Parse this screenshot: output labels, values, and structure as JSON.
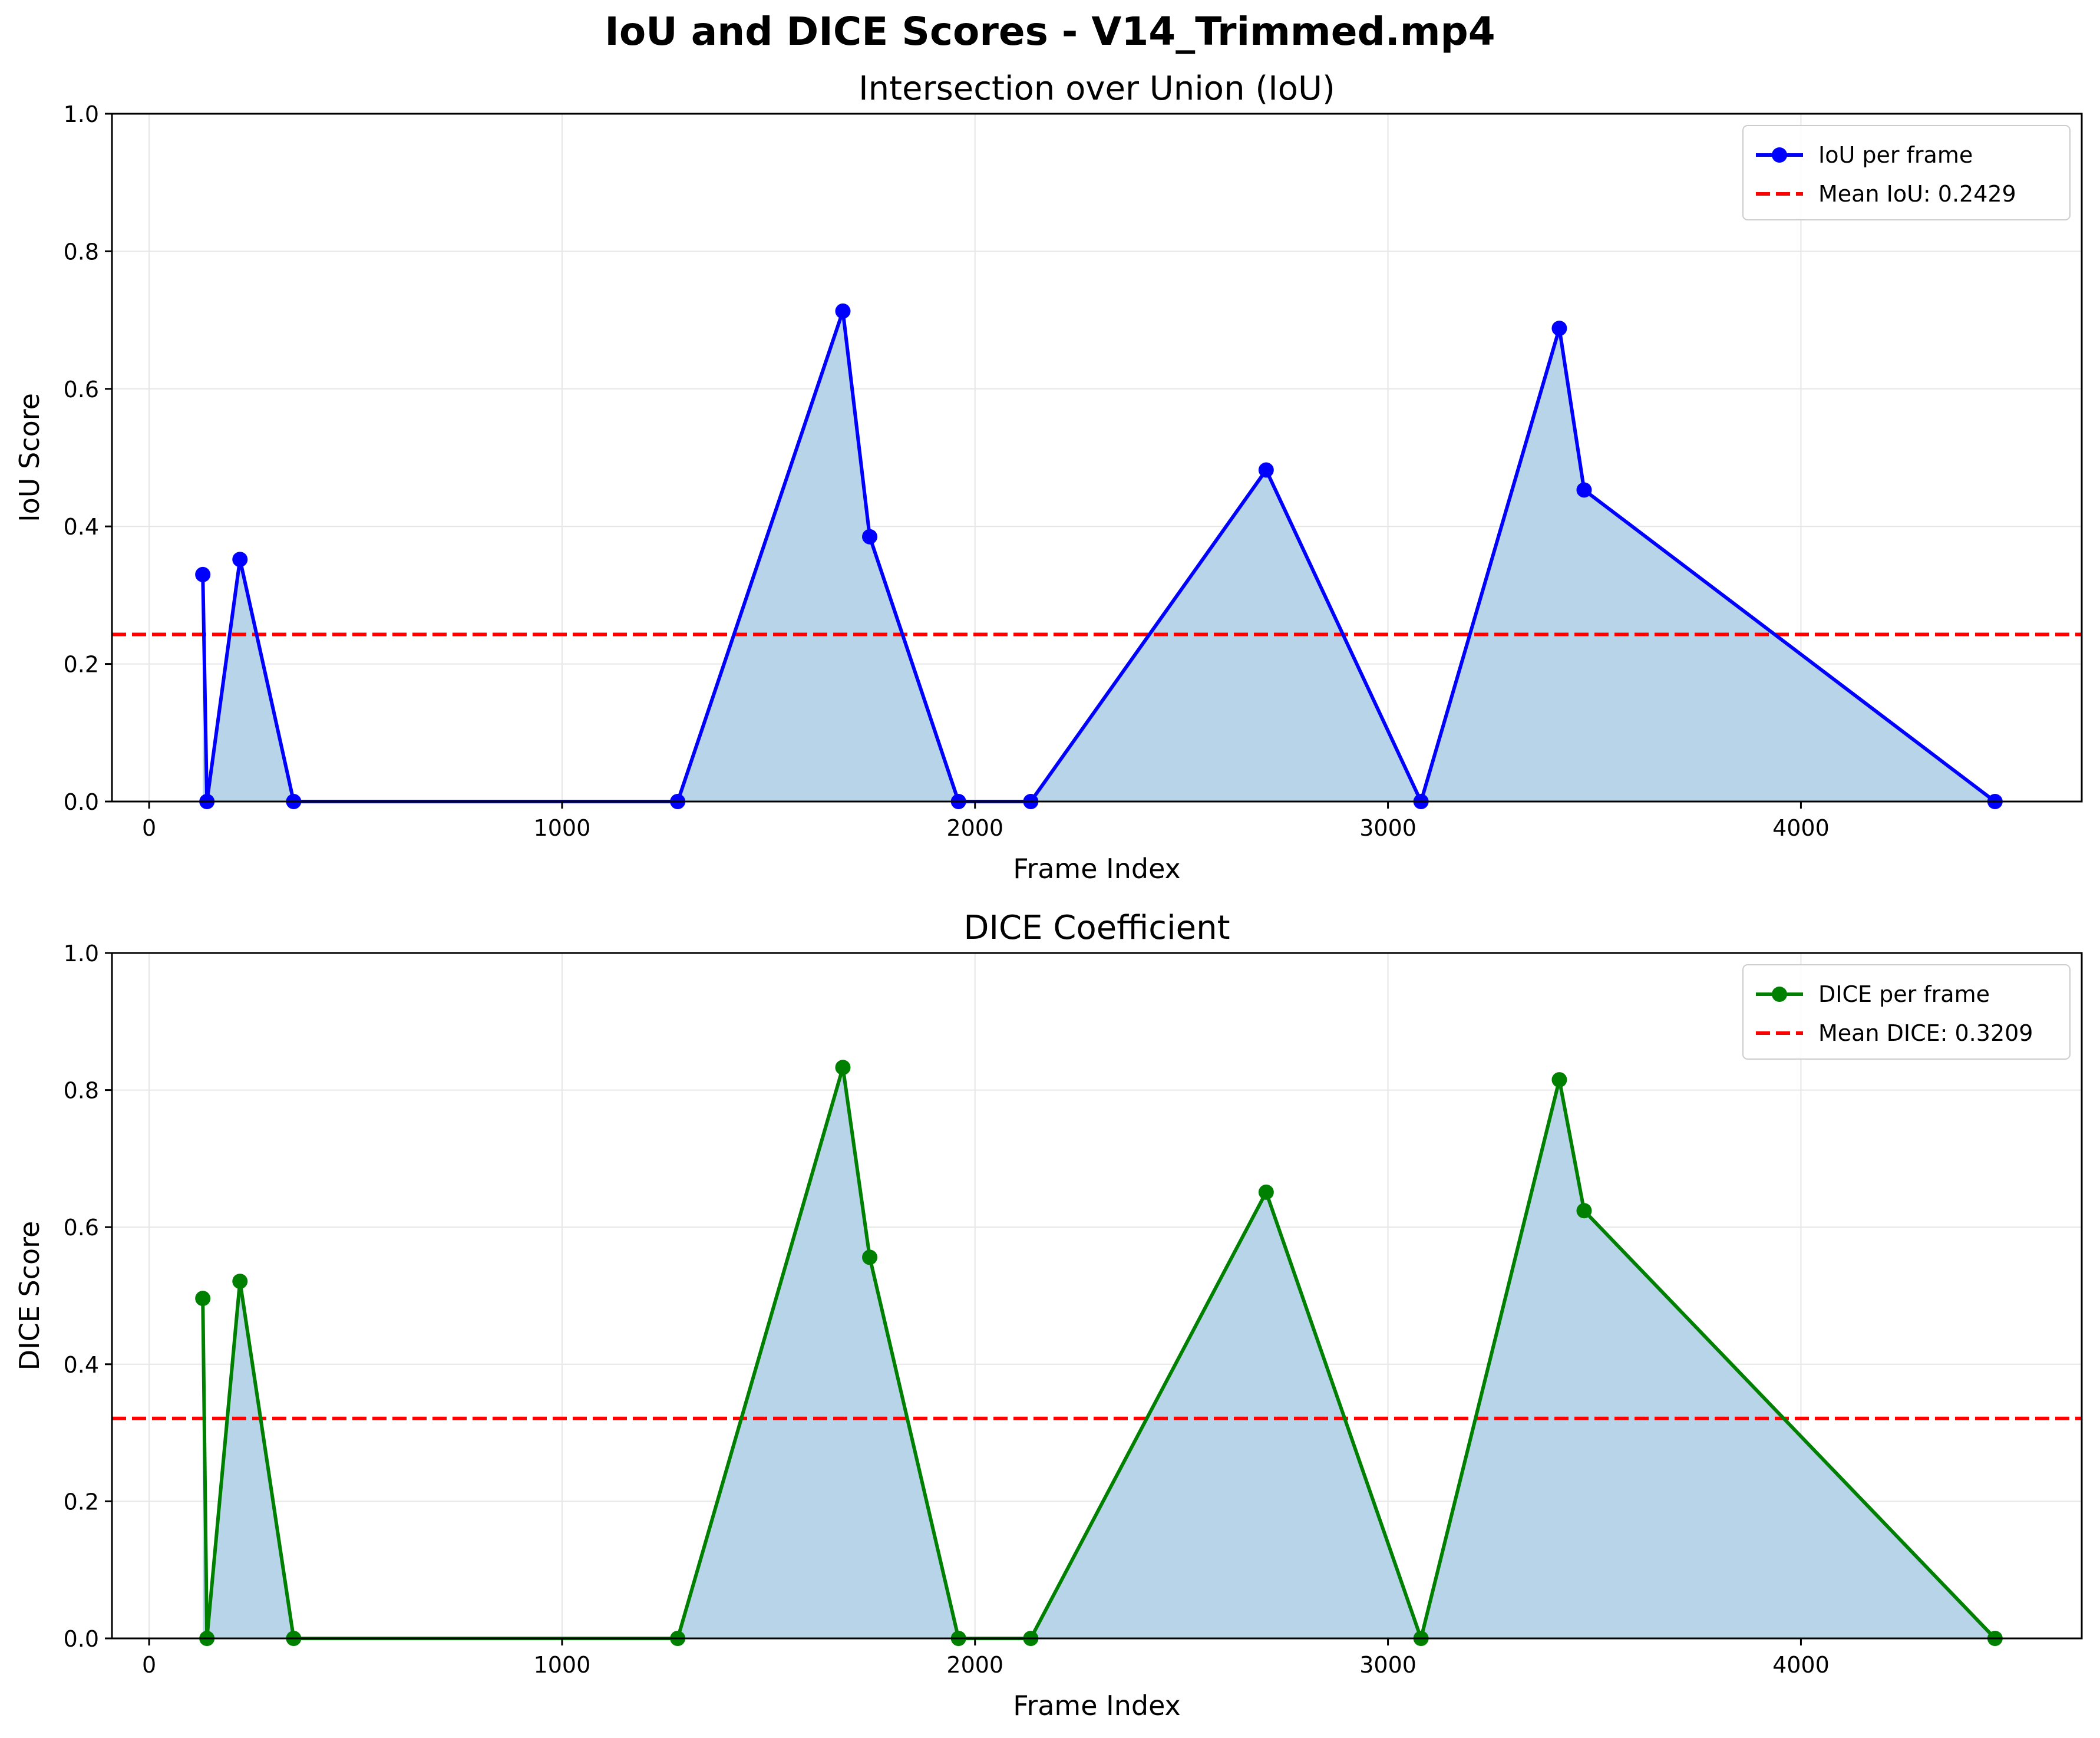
{
  "figure": {
    "title": "IoU and DICE Scores - V14_Trimmed.mp4"
  },
  "chart_data": [
    {
      "type": "line",
      "title": "Intersection over Union (IoU)",
      "xlabel": "Frame Index",
      "ylabel": "IoU Score",
      "xlim": [
        -90,
        4680
      ],
      "ylim": [
        0,
        1.0
      ],
      "xticks": [
        0,
        1000,
        2000,
        3000,
        4000
      ],
      "yticks": [
        0.0,
        0.2,
        0.4,
        0.6,
        0.8,
        1.0
      ],
      "grid": true,
      "legend_position": "top-right",
      "fill_under": true,
      "fill_color": "#b8d4e8",
      "series": [
        {
          "name": "IoU per frame",
          "color": "#0000ff",
          "marker": "circle",
          "x": [
            130,
            140,
            220,
            350,
            1280,
            1680,
            1745,
            1960,
            2135,
            2705,
            3080,
            3415,
            3475,
            4470
          ],
          "y": [
            0.33,
            0.0,
            0.352,
            0.0,
            0.0,
            0.713,
            0.385,
            0.0,
            0.0,
            0.482,
            0.0,
            0.688,
            0.453,
            0.0
          ]
        }
      ],
      "reference_lines": [
        {
          "name": "Mean IoU: 0.2429",
          "value": 0.2429,
          "color": "#ff0000",
          "style": "dashed"
        }
      ]
    },
    {
      "type": "line",
      "title": "DICE Coefficient",
      "xlabel": "Frame Index",
      "ylabel": "DICE Score",
      "xlim": [
        -90,
        4680
      ],
      "ylim": [
        0,
        1.0
      ],
      "xticks": [
        0,
        1000,
        2000,
        3000,
        4000
      ],
      "yticks": [
        0.0,
        0.2,
        0.4,
        0.6,
        0.8,
        1.0
      ],
      "grid": true,
      "legend_position": "top-right",
      "fill_under": true,
      "fill_color": "#b8d4e8",
      "series": [
        {
          "name": "DICE per frame",
          "color": "#008000",
          "marker": "circle",
          "x": [
            130,
            140,
            220,
            350,
            1280,
            1680,
            1745,
            1960,
            2135,
            2705,
            3080,
            3415,
            3475,
            4470
          ],
          "y": [
            0.496,
            0.0,
            0.521,
            0.0,
            0.0,
            0.833,
            0.556,
            0.0,
            0.0,
            0.651,
            0.0,
            0.815,
            0.624,
            0.0
          ]
        }
      ],
      "reference_lines": [
        {
          "name": "Mean DICE: 0.3209",
          "value": 0.3209,
          "color": "#ff0000",
          "style": "dashed"
        }
      ]
    }
  ]
}
